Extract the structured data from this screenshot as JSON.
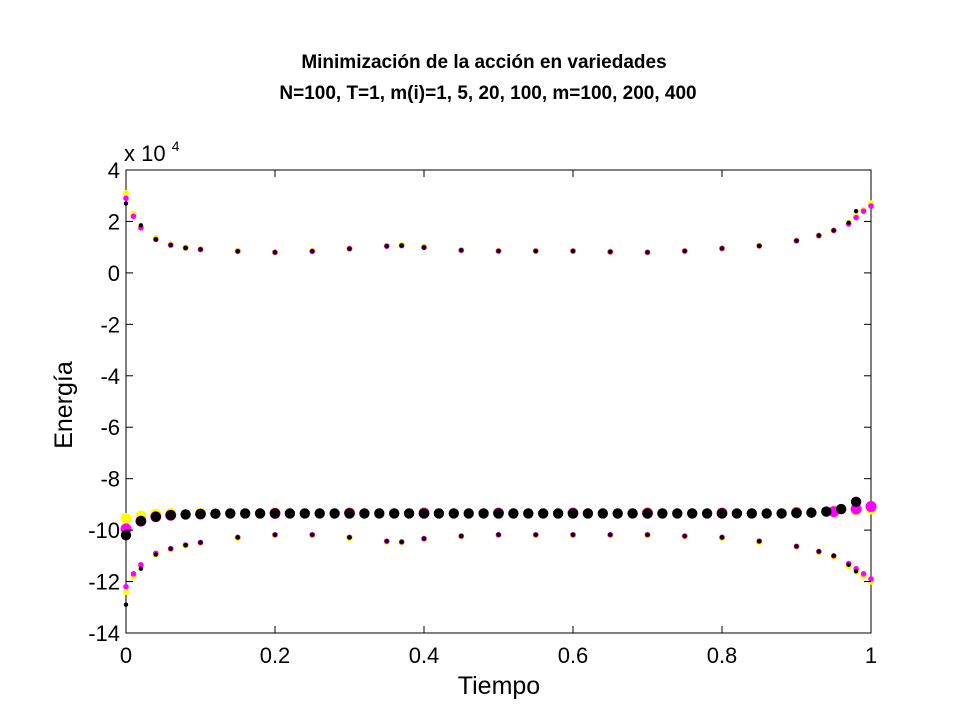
{
  "chart_data": {
    "type": "scatter",
    "title": "Minimización de la acción en variedades",
    "subtitle": "N=100,  T=1,  m(i)=1, 5, 20, 100, m=100, 200, 400",
    "xlabel": "Tiempo",
    "ylabel": "Energía",
    "scale_note": "x 10",
    "scale_exponent": "4",
    "xlim": [
      0,
      1
    ],
    "ylim": [
      -14,
      4
    ],
    "xticks": [
      "0",
      "0.2",
      "0.4",
      "0.6",
      "0.8",
      "1"
    ],
    "yticks": [
      "4",
      "2",
      "0",
      "-2",
      "-4",
      "-6",
      "-8",
      "-10",
      "-12",
      "-14"
    ],
    "grid": false,
    "colors": {
      "yellow": "#ffff00",
      "magenta": "#ff00ff",
      "black": "#000000"
    },
    "series": [
      {
        "color": "yellow",
        "x": [
          0.0,
          0.01,
          0.02,
          0.04,
          0.06,
          0.08,
          0.1,
          0.15,
          0.2,
          0.25,
          0.3,
          0.35,
          0.37,
          0.4,
          0.45,
          0.5,
          0.55,
          0.6,
          0.65,
          0.7,
          0.75,
          0.8,
          0.85,
          0.9,
          0.93,
          0.95,
          0.97,
          0.98,
          0.99,
          1.0
        ],
        "y": [
          3.1,
          2.3,
          1.8,
          1.35,
          1.1,
          0.98,
          0.92,
          0.85,
          0.8,
          0.85,
          0.95,
          1.05,
          1.08,
          1.0,
          0.88,
          0.85,
          0.85,
          0.85,
          0.82,
          0.8,
          0.85,
          0.95,
          1.05,
          1.25,
          1.45,
          1.65,
          1.95,
          2.2,
          2.45,
          2.7
        ]
      },
      {
        "color": "magenta",
        "x": [
          0.0,
          0.01,
          0.02,
          0.04,
          0.06,
          0.08,
          0.1,
          0.15,
          0.2,
          0.25,
          0.3,
          0.35,
          0.37,
          0.4,
          0.45,
          0.5,
          0.55,
          0.6,
          0.65,
          0.7,
          0.75,
          0.8,
          0.85,
          0.9,
          0.93,
          0.95,
          0.97,
          0.98,
          0.99,
          1.0
        ],
        "y": [
          2.9,
          2.2,
          1.75,
          1.3,
          1.08,
          0.97,
          0.91,
          0.84,
          0.8,
          0.84,
          0.94,
          1.04,
          1.06,
          0.99,
          0.88,
          0.85,
          0.85,
          0.85,
          0.82,
          0.8,
          0.85,
          0.95,
          1.05,
          1.25,
          1.45,
          1.65,
          1.9,
          2.15,
          2.4,
          2.6
        ]
      },
      {
        "color": "black",
        "x": [
          0.0,
          0.02,
          0.04,
          0.06,
          0.08,
          0.1,
          0.15,
          0.2,
          0.25,
          0.3,
          0.35,
          0.37,
          0.4,
          0.45,
          0.5,
          0.55,
          0.6,
          0.65,
          0.7,
          0.75,
          0.8,
          0.85,
          0.9,
          0.93,
          0.95,
          0.97,
          0.98
        ],
        "y": [
          2.7,
          1.85,
          1.3,
          1.08,
          0.97,
          0.91,
          0.84,
          0.8,
          0.84,
          0.94,
          1.04,
          1.06,
          0.99,
          0.88,
          0.85,
          0.85,
          0.85,
          0.82,
          0.8,
          0.85,
          0.95,
          1.05,
          1.25,
          1.45,
          1.65,
          1.95,
          2.4
        ]
      },
      {
        "color": "yellow",
        "x": [
          0.0,
          0.02,
          0.04,
          0.06,
          0.1,
          0.2,
          0.3,
          0.4,
          0.5,
          0.6,
          0.7,
          0.8,
          0.9,
          0.95,
          0.98,
          1.0
        ],
        "y": [
          -9.55,
          -9.45,
          -9.38,
          -9.35,
          -9.33,
          -9.32,
          -9.32,
          -9.32,
          -9.32,
          -9.32,
          -9.32,
          -9.32,
          -9.3,
          -9.27,
          -9.22,
          -9.18
        ]
      },
      {
        "color": "magenta",
        "x": [
          0.0,
          0.02,
          0.04,
          0.06,
          0.1,
          0.2,
          0.3,
          0.4,
          0.5,
          0.6,
          0.7,
          0.8,
          0.9,
          0.95,
          0.98,
          1.0
        ],
        "y": [
          -9.95,
          -9.65,
          -9.48,
          -9.42,
          -9.38,
          -9.35,
          -9.34,
          -9.34,
          -9.34,
          -9.34,
          -9.34,
          -9.34,
          -9.32,
          -9.28,
          -9.18,
          -9.08
        ]
      },
      {
        "color": "black",
        "x": [
          0.0,
          0.02,
          0.04,
          0.06,
          0.08,
          0.1,
          0.12,
          0.14,
          0.16,
          0.18,
          0.2,
          0.22,
          0.24,
          0.26,
          0.28,
          0.3,
          0.32,
          0.34,
          0.36,
          0.38,
          0.4,
          0.42,
          0.44,
          0.46,
          0.48,
          0.5,
          0.52,
          0.54,
          0.56,
          0.58,
          0.6,
          0.62,
          0.64,
          0.66,
          0.68,
          0.7,
          0.72,
          0.74,
          0.76,
          0.78,
          0.8,
          0.82,
          0.84,
          0.86,
          0.88,
          0.9,
          0.92,
          0.94,
          0.96,
          0.98
        ],
        "y": [
          -10.2,
          -9.65,
          -9.48,
          -9.42,
          -9.39,
          -9.37,
          -9.36,
          -9.35,
          -9.35,
          -9.35,
          -9.35,
          -9.35,
          -9.35,
          -9.35,
          -9.35,
          -9.35,
          -9.35,
          -9.35,
          -9.35,
          -9.35,
          -9.35,
          -9.35,
          -9.35,
          -9.35,
          -9.35,
          -9.35,
          -9.35,
          -9.35,
          -9.35,
          -9.35,
          -9.35,
          -9.35,
          -9.35,
          -9.35,
          -9.35,
          -9.35,
          -9.35,
          -9.35,
          -9.35,
          -9.35,
          -9.35,
          -9.35,
          -9.35,
          -9.35,
          -9.35,
          -9.34,
          -9.32,
          -9.28,
          -9.18,
          -8.9
        ]
      },
      {
        "color": "yellow",
        "x": [
          0.0,
          0.01,
          0.02,
          0.04,
          0.06,
          0.08,
          0.1,
          0.15,
          0.2,
          0.25,
          0.3,
          0.35,
          0.37,
          0.4,
          0.45,
          0.5,
          0.55,
          0.6,
          0.65,
          0.7,
          0.75,
          0.8,
          0.85,
          0.9,
          0.93,
          0.95,
          0.97,
          0.98,
          0.99,
          1.0
        ],
        "y": [
          -12.4,
          -11.8,
          -11.4,
          -10.95,
          -10.75,
          -10.6,
          -10.5,
          -10.3,
          -10.2,
          -10.2,
          -10.3,
          -10.45,
          -10.48,
          -10.35,
          -10.25,
          -10.2,
          -10.2,
          -10.2,
          -10.2,
          -10.2,
          -10.25,
          -10.3,
          -10.45,
          -10.65,
          -10.85,
          -11.05,
          -11.4,
          -11.6,
          -11.8,
          -12.0
        ]
      },
      {
        "color": "magenta",
        "x": [
          0.0,
          0.01,
          0.02,
          0.04,
          0.06,
          0.08,
          0.1,
          0.15,
          0.2,
          0.25,
          0.3,
          0.35,
          0.37,
          0.4,
          0.45,
          0.5,
          0.55,
          0.6,
          0.65,
          0.7,
          0.75,
          0.8,
          0.85,
          0.9,
          0.93,
          0.95,
          0.97,
          0.98,
          0.99,
          1.0
        ],
        "y": [
          -12.2,
          -11.7,
          -11.35,
          -10.9,
          -10.72,
          -10.58,
          -10.48,
          -10.28,
          -10.18,
          -10.18,
          -10.28,
          -10.43,
          -10.46,
          -10.33,
          -10.23,
          -10.18,
          -10.18,
          -10.18,
          -10.18,
          -10.18,
          -10.23,
          -10.28,
          -10.43,
          -10.63,
          -10.83,
          -11.0,
          -11.3,
          -11.5,
          -11.7,
          -11.9
        ]
      },
      {
        "color": "black",
        "x": [
          0.0,
          0.02,
          0.04,
          0.06,
          0.08,
          0.1,
          0.15,
          0.2,
          0.25,
          0.3,
          0.35,
          0.37,
          0.4,
          0.45,
          0.5,
          0.55,
          0.6,
          0.65,
          0.7,
          0.75,
          0.8,
          0.85,
          0.9,
          0.93,
          0.95,
          0.97,
          0.98
        ],
        "y": [
          -12.9,
          -11.5,
          -10.95,
          -10.72,
          -10.58,
          -10.48,
          -10.28,
          -10.18,
          -10.18,
          -10.28,
          -10.43,
          -10.46,
          -10.33,
          -10.23,
          -10.18,
          -10.18,
          -10.18,
          -10.18,
          -10.18,
          -10.23,
          -10.28,
          -10.43,
          -10.63,
          -10.83,
          -11.0,
          -11.35,
          -11.6
        ]
      }
    ]
  }
}
